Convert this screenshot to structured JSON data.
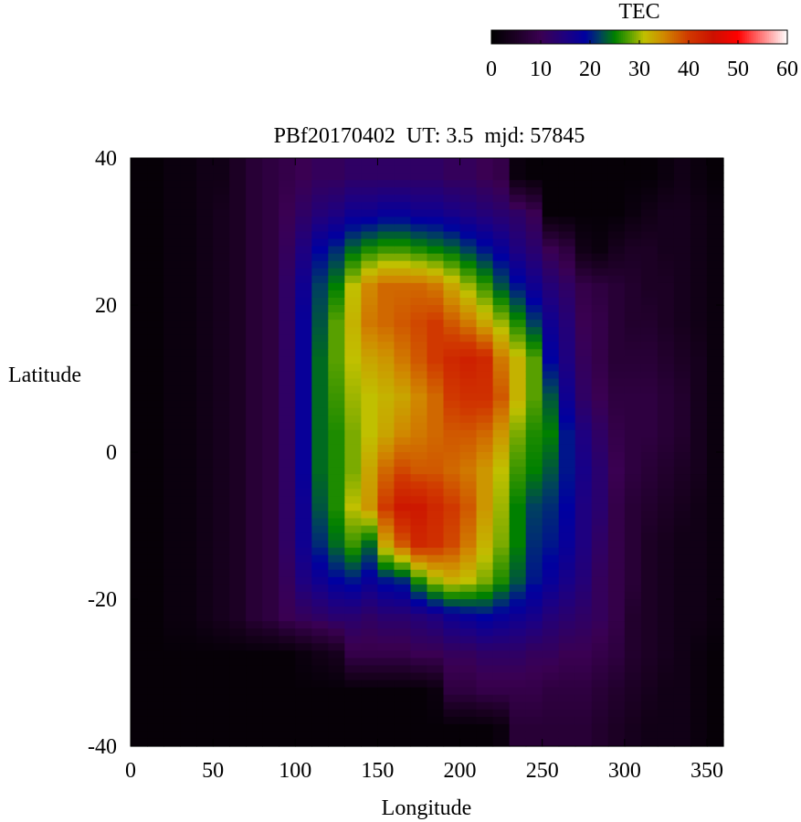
{
  "chart_data": {
    "type": "heatmap",
    "title": "PBf20170402  UT: 3.5  mjd: 57845",
    "xlabel": "Longitude",
    "ylabel": "Latitude",
    "xlim": [
      0,
      360
    ],
    "ylim": [
      -40,
      40
    ],
    "xticks": [
      "0",
      "50",
      "100",
      "150",
      "200",
      "250",
      "300",
      "350"
    ],
    "yticks": [
      "40",
      "20",
      "0",
      "-20",
      "-40"
    ],
    "grid": false,
    "colorbar": {
      "title": "TEC",
      "range": [
        0,
        60
      ],
      "ticks": [
        "0",
        "10",
        "20",
        "30",
        "40",
        "50",
        "60"
      ],
      "placement": "top-right",
      "colormap": [
        {
          "v": 0,
          "c": "#000000"
        },
        {
          "v": 5,
          "c": "#1c0024"
        },
        {
          "v": 10,
          "c": "#3a0052"
        },
        {
          "v": 15,
          "c": "#1e0080"
        },
        {
          "v": 19,
          "c": "#0000a0"
        },
        {
          "v": 22,
          "c": "#004060"
        },
        {
          "v": 25,
          "c": "#008000"
        },
        {
          "v": 28,
          "c": "#58a000"
        },
        {
          "v": 31,
          "c": "#c0c000"
        },
        {
          "v": 35,
          "c": "#d08800"
        },
        {
          "v": 40,
          "c": "#d03800"
        },
        {
          "v": 45,
          "c": "#cc1000"
        },
        {
          "v": 50,
          "c": "#ff0000"
        },
        {
          "v": 55,
          "c": "#ff8080"
        },
        {
          "v": 60,
          "c": "#ffffff"
        }
      ]
    },
    "longitude_centers": [
      5,
      15,
      25,
      35,
      45,
      55,
      65,
      75,
      85,
      95,
      105,
      115,
      125,
      135,
      145,
      155,
      165,
      175,
      185,
      195,
      205,
      215,
      225,
      235,
      245,
      255,
      265,
      275,
      285,
      295,
      305,
      315,
      325,
      335,
      345,
      355
    ],
    "latitude_centers": [
      37.5,
      32.5,
      27.5,
      22.5,
      17.5,
      12.5,
      7.5,
      2.5,
      -2.5,
      -7.5,
      -12.5,
      -17.5,
      -22.5,
      -27.5,
      -32.5,
      -37.5
    ],
    "values_by_longitude": [
      [
        1,
        1,
        1,
        1,
        1,
        1,
        1,
        1,
        1,
        1,
        1,
        1,
        1,
        1,
        1,
        1
      ],
      [
        1,
        1,
        1,
        1,
        1,
        1,
        1,
        1,
        1,
        1,
        1,
        1,
        1,
        1,
        1,
        1
      ],
      [
        2,
        2,
        2,
        2,
        2,
        2,
        2,
        2,
        2,
        2,
        2,
        2,
        2,
        1,
        1,
        1
      ],
      [
        2,
        2,
        2,
        2,
        2,
        2,
        2,
        2,
        2,
        2,
        2,
        2,
        2,
        1,
        1,
        1
      ],
      [
        3,
        3,
        3,
        3,
        3,
        3,
        3,
        3,
        3,
        3,
        3,
        3,
        3,
        1,
        1,
        1
      ],
      [
        3,
        4,
        4,
        4,
        4,
        4,
        4,
        4,
        4,
        4,
        4,
        4,
        4,
        1,
        1,
        1
      ],
      [
        5,
        5,
        5,
        5,
        5,
        5,
        5,
        5,
        5,
        5,
        5,
        5,
        5,
        1,
        1,
        1
      ],
      [
        7,
        7,
        7,
        7,
        7,
        7,
        7,
        7,
        7,
        7,
        7,
        7,
        7,
        1,
        1,
        1
      ],
      [
        8,
        8,
        8,
        8,
        8,
        8,
        8,
        8,
        8,
        8,
        8,
        8,
        8,
        1,
        1,
        1
      ],
      [
        9,
        10,
        11,
        12,
        12,
        12,
        12,
        12,
        12,
        12,
        12,
        11,
        10,
        1,
        1,
        1
      ],
      [
        10,
        12,
        15,
        17,
        18,
        18,
        18,
        18,
        18,
        17,
        17,
        15,
        11,
        2,
        1,
        1
      ],
      [
        11,
        14,
        19,
        22,
        23,
        24,
        24,
        24,
        24,
        23,
        21,
        17,
        12,
        3,
        1,
        1
      ],
      [
        11,
        15,
        21,
        25,
        28,
        28,
        27,
        26,
        26,
        26,
        24,
        19,
        13,
        4,
        1,
        1
      ],
      [
        12,
        17,
        24,
        31,
        32,
        31,
        30,
        29,
        29,
        31,
        27,
        20,
        13,
        9,
        1,
        1
      ],
      [
        12,
        17,
        26,
        35,
        36,
        33,
        31,
        31,
        33,
        34,
        24,
        18,
        12,
        9,
        1,
        1
      ],
      [
        12,
        18,
        27,
        37,
        37,
        34,
        32,
        33,
        37,
        40,
        33,
        20,
        13,
        9,
        1,
        1
      ],
      [
        12,
        18,
        27,
        37,
        38,
        36,
        33,
        35,
        39,
        44,
        38,
        21,
        13,
        9,
        1,
        1
      ],
      [
        12,
        17,
        26,
        37,
        39,
        38,
        35,
        36,
        38,
        44,
        42,
        26,
        14,
        10,
        1,
        1
      ],
      [
        12,
        17,
        25,
        36,
        40,
        40,
        37,
        37,
        38,
        42,
        41,
        30,
        15,
        10,
        2,
        1
      ],
      [
        11,
        16,
        24,
        33,
        38,
        42,
        40,
        38,
        37,
        40,
        39,
        32,
        17,
        11,
        8,
        1
      ],
      [
        11,
        15,
        22,
        30,
        36,
        43,
        41,
        38,
        36,
        38,
        36,
        31,
        18,
        11,
        8,
        1
      ],
      [
        10,
        14,
        20,
        27,
        33,
        42,
        41,
        37,
        34,
        34,
        32,
        29,
        19,
        12,
        9,
        1
      ],
      [
        9,
        13,
        18,
        23,
        30,
        36,
        38,
        34,
        31,
        30,
        29,
        26,
        18,
        12,
        9,
        2
      ],
      [
        2,
        12,
        15,
        20,
        26,
        32,
        32,
        29,
        27,
        25,
        25,
        23,
        17,
        12,
        9,
        7
      ],
      [
        1,
        10,
        13,
        17,
        22,
        28,
        28,
        26,
        25,
        22,
        21,
        20,
        16,
        11,
        9,
        7
      ],
      [
        1,
        1,
        10,
        14,
        17,
        19,
        23,
        25,
        23,
        21,
        20,
        18,
        14,
        11,
        8,
        7
      ],
      [
        1,
        1,
        8,
        12,
        14,
        15,
        17,
        20,
        20,
        19,
        18,
        16,
        13,
        10,
        8,
        7
      ],
      [
        1,
        1,
        3,
        9,
        10,
        11,
        12,
        15,
        16,
        15,
        15,
        14,
        12,
        10,
        8,
        7
      ],
      [
        1,
        1,
        2,
        8,
        9,
        9,
        10,
        12,
        13,
        13,
        12,
        11,
        11,
        9,
        7,
        6
      ],
      [
        1,
        1,
        4,
        7,
        7,
        7,
        8,
        9,
        10,
        9,
        9,
        9,
        9,
        8,
        6,
        5
      ],
      [
        1,
        2,
        5,
        6,
        6,
        7,
        8,
        8,
        8,
        7,
        7,
        7,
        6,
        6,
        5,
        4
      ],
      [
        1,
        3,
        5,
        5,
        6,
        7,
        8,
        8,
        7,
        6,
        5,
        5,
        5,
        5,
        4,
        3
      ],
      [
        2,
        4,
        4,
        5,
        5,
        6,
        7,
        7,
        6,
        5,
        4,
        4,
        4,
        4,
        3,
        3
      ],
      [
        3,
        4,
        4,
        4,
        4,
        5,
        6,
        6,
        5,
        4,
        3,
        3,
        3,
        3,
        3,
        3
      ],
      [
        2,
        3,
        3,
        3,
        3,
        4,
        4,
        4,
        4,
        3,
        3,
        3,
        3,
        2,
        2,
        2
      ],
      [
        1,
        2,
        2,
        2,
        2,
        2,
        2,
        2,
        2,
        2,
        2,
        2,
        2,
        1,
        1,
        1
      ]
    ]
  }
}
